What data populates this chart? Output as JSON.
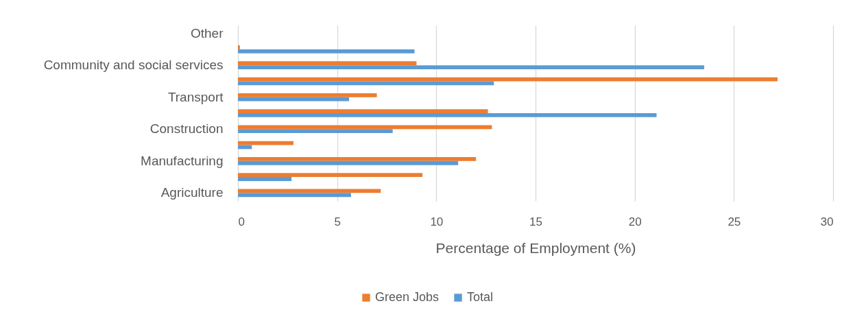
{
  "chart_data": {
    "type": "bar",
    "orientation": "horizontal",
    "categories": [
      "Other",
      null,
      "Community and social services",
      null,
      "Transport",
      null,
      "Construction",
      null,
      "Manufacturing",
      null,
      "Agriculture"
    ],
    "series": [
      {
        "name": "Green Jobs",
        "color": "#ed7d31",
        "values": [
          null,
          0.1,
          9.0,
          27.2,
          7.0,
          12.6,
          12.8,
          2.8,
          12.0,
          9.3,
          7.2
        ]
      },
      {
        "name": "Total",
        "color": "#5b9bd5",
        "values": [
          null,
          8.9,
          23.5,
          12.9,
          5.6,
          21.1,
          7.8,
          0.7,
          11.1,
          2.7,
          5.7
        ]
      }
    ],
    "xlabel": "Percentage of Employment (%)",
    "xlim": [
      0,
      30
    ],
    "xticks": [
      0,
      5,
      10,
      15,
      20,
      25,
      30
    ],
    "grid": "x",
    "legend": "bottom"
  }
}
